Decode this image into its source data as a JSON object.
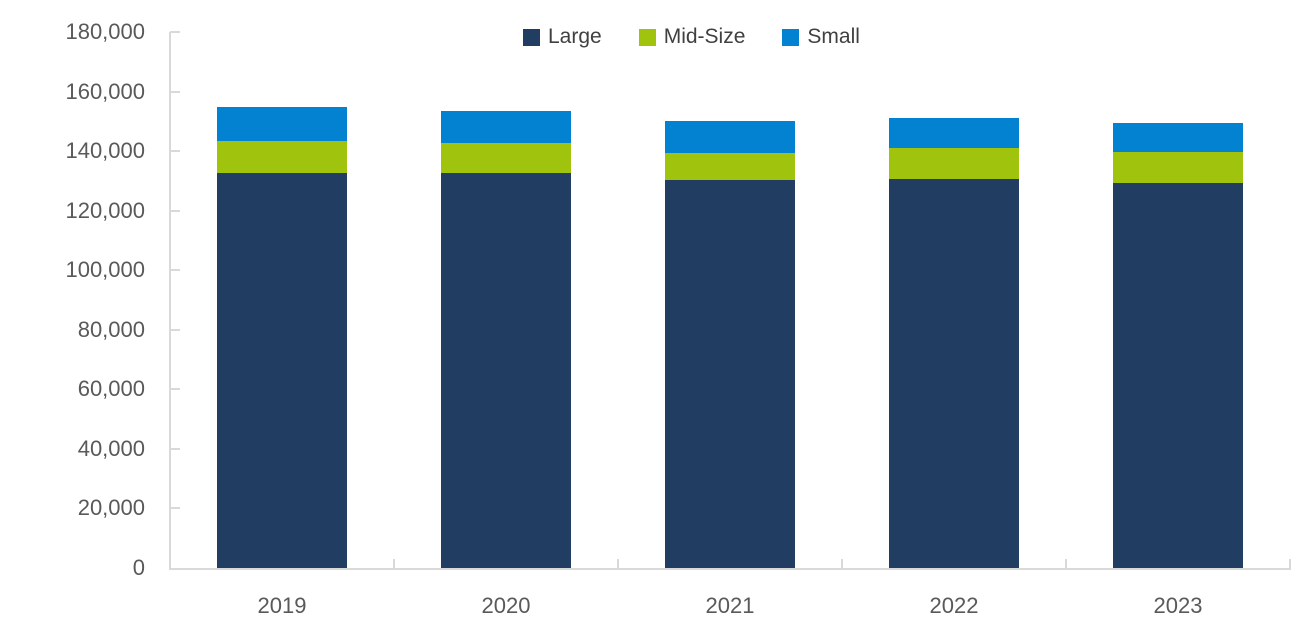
{
  "chart_data": {
    "type": "bar",
    "stacked": true,
    "categories": [
      "2019",
      "2020",
      "2021",
      "2022",
      "2023"
    ],
    "series": [
      {
        "name": "Large",
        "color": "#223D62",
        "values": [
          132700,
          132700,
          130300,
          130700,
          129300
        ]
      },
      {
        "name": "Mid-Size",
        "color": "#A0C40E",
        "values": [
          10600,
          10100,
          9100,
          10400,
          10400
        ]
      },
      {
        "name": "Small",
        "color": "#0282D0",
        "values": [
          11400,
          10700,
          10700,
          10000,
          9700
        ]
      }
    ],
    "stack_order_bottom_to_top": [
      "Large",
      "Mid-Size",
      "Small"
    ],
    "ylim": [
      0,
      180000
    ],
    "ytick_step": 20000,
    "ytick_labels": [
      "0",
      "20,000",
      "40,000",
      "60,000",
      "80,000",
      "100,000",
      "120,000",
      "140,000",
      "160,000",
      "180,000"
    ],
    "grid": false,
    "legend_position": "top-center",
    "axis_color": "#D9D9D9",
    "tick_style": "inside",
    "axis_label_color": "#595959",
    "legend_text_color": "#404040",
    "background_color": "#FFFFFF"
  }
}
